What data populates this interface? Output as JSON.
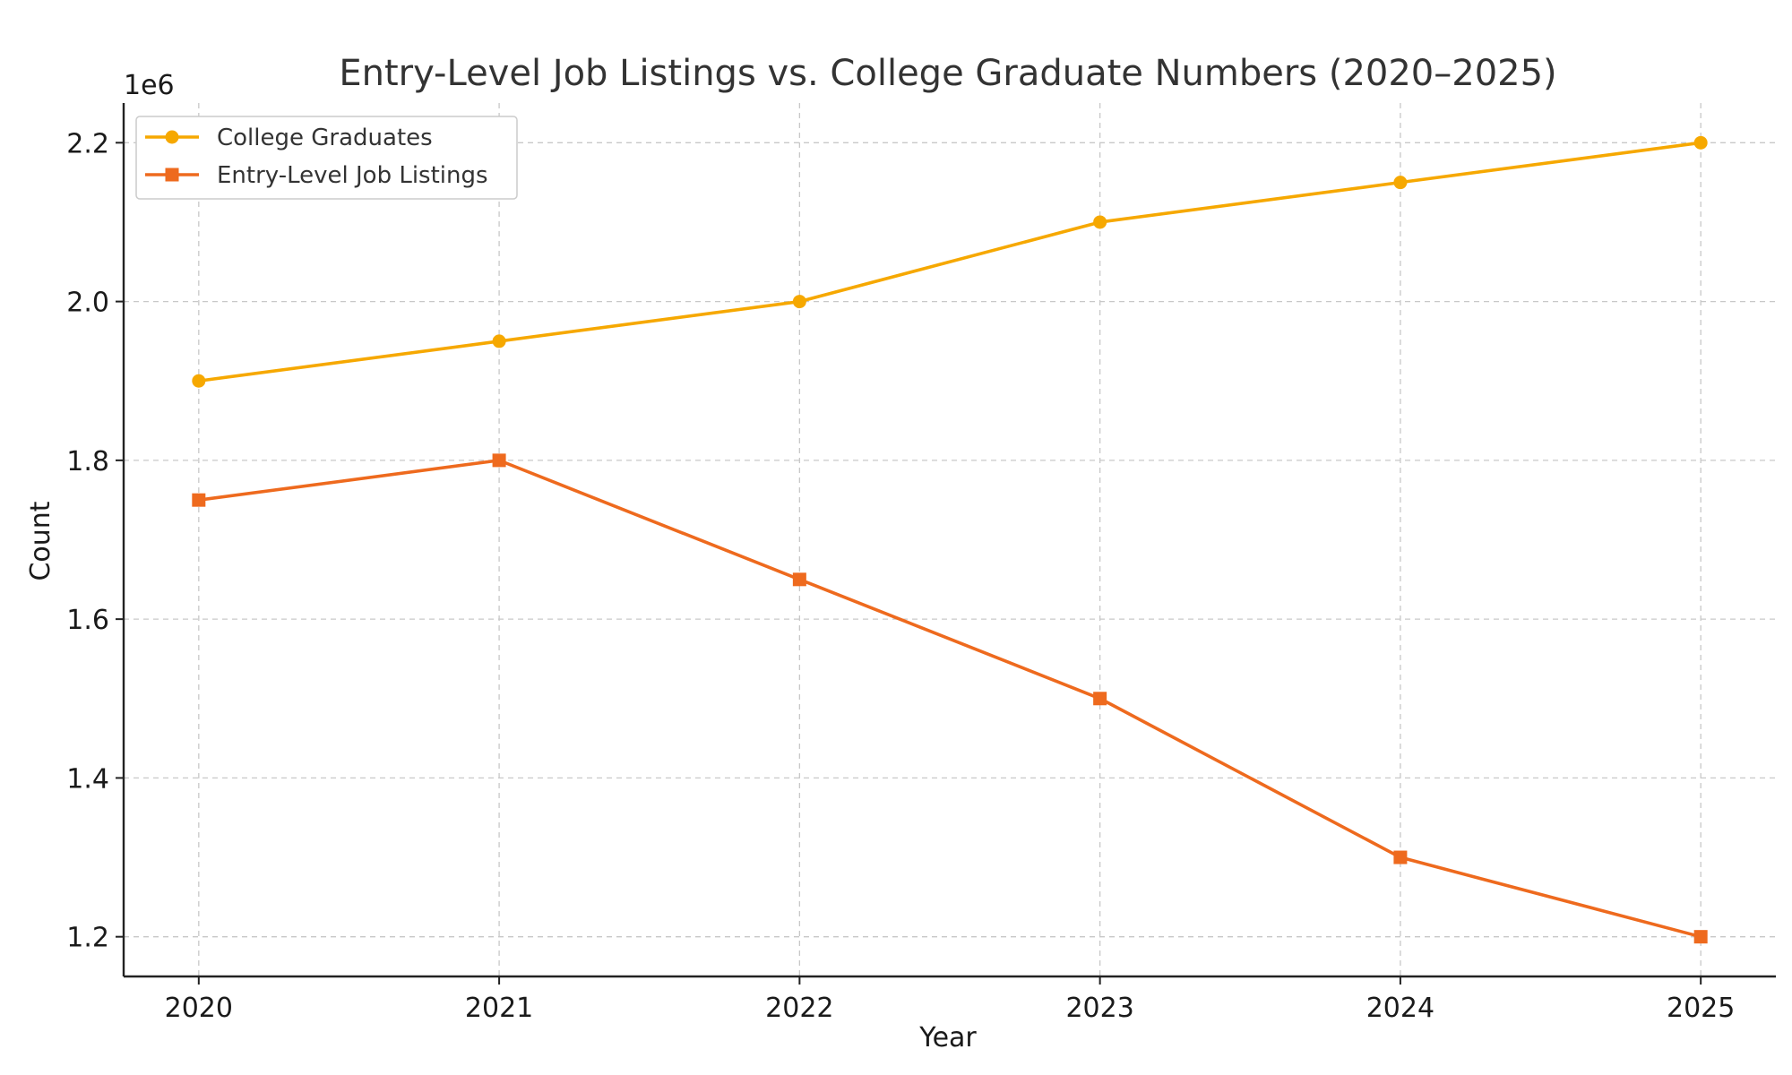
{
  "chart_data": {
    "type": "line",
    "title": "Entry-Level Job Listings vs. College Graduate Numbers (2020–2025)",
    "xlabel": "Year",
    "ylabel": "Count",
    "y_offset_label": "1e6",
    "x": [
      2020,
      2021,
      2022,
      2023,
      2024,
      2025
    ],
    "x_tick_labels": [
      "2020",
      "2021",
      "2022",
      "2023",
      "2024",
      "2025"
    ],
    "y_ticks": [
      1200000,
      1400000,
      1600000,
      1800000,
      2000000,
      2200000
    ],
    "y_tick_labels": [
      "1.2",
      "1.4",
      "1.6",
      "1.8",
      "2.0",
      "2.2"
    ],
    "ylim": [
      1150000,
      2250000
    ],
    "xlim": [
      2019.75,
      2025.25
    ],
    "grid": true,
    "legend_position": "upper-left",
    "series": [
      {
        "name": "College Graduates",
        "marker": "circle",
        "color": "#F6A800",
        "values": [
          1900000,
          1950000,
          2000000,
          2100000,
          2150000,
          2200000
        ]
      },
      {
        "name": "Entry-Level Job Listings",
        "marker": "square",
        "color": "#EE6A1E",
        "values": [
          1750000,
          1800000,
          1650000,
          1500000,
          1300000,
          1200000
        ]
      }
    ]
  }
}
